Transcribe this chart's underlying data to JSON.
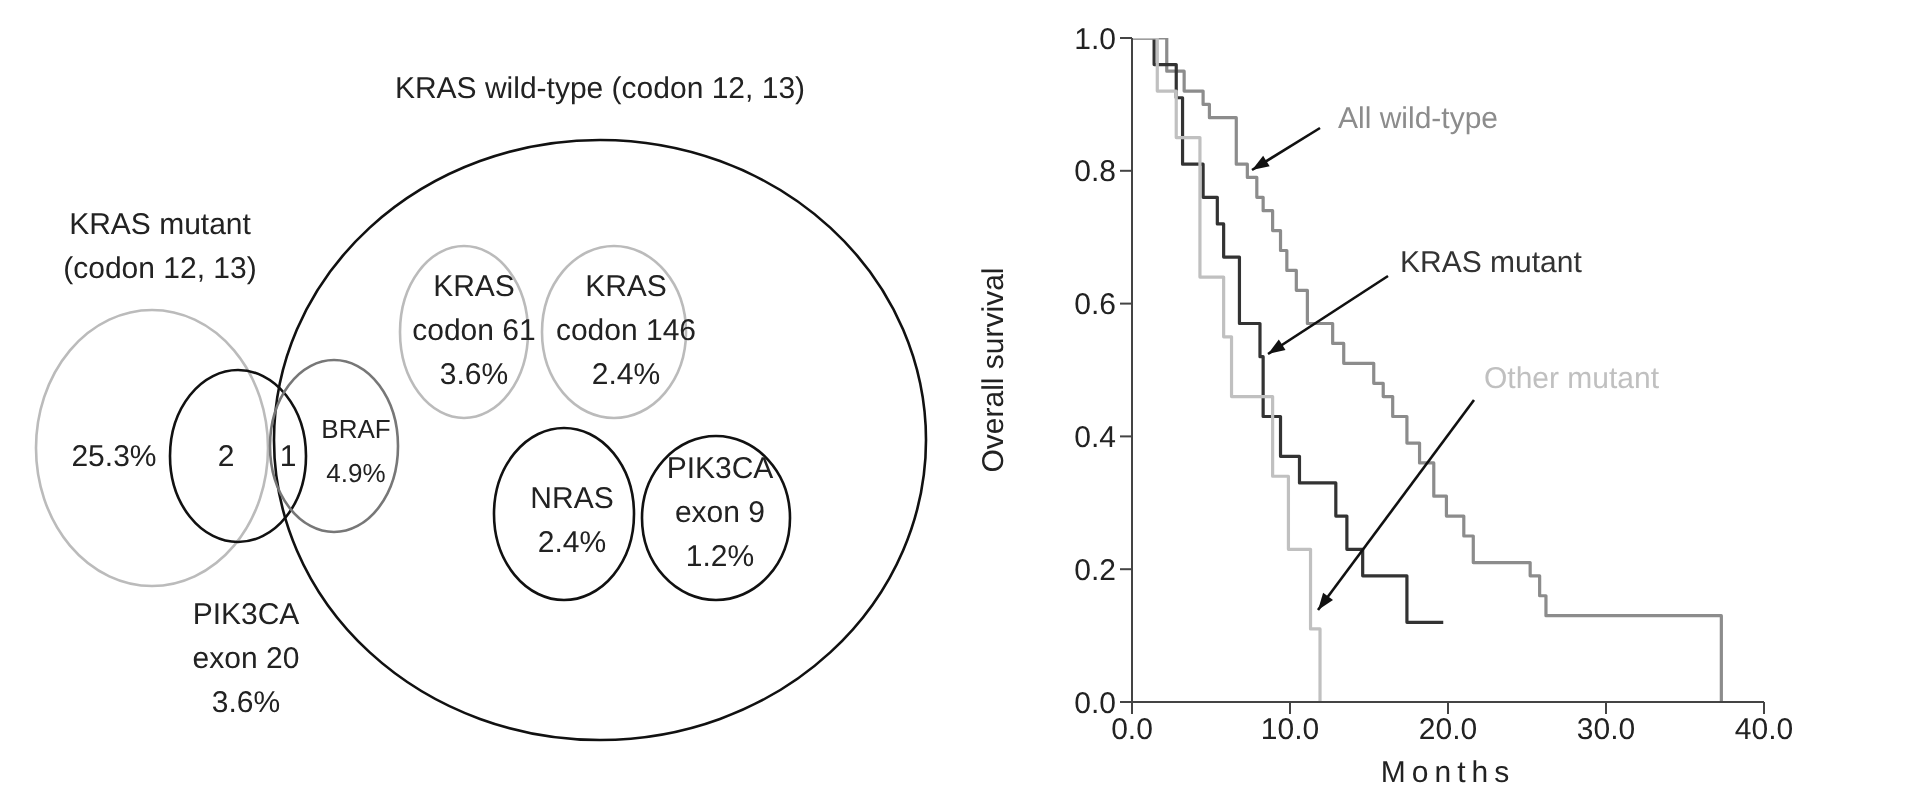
{
  "chart_data": [
    {
      "type": "other",
      "annotations": [
        "KRAS wild-type (codon 12, 13)",
        "KRAS mutant\n(codon 12, 13)",
        "KRAS\ncodon 61\n3.6%",
        "KRAS\ncodon 146\n2.4%",
        "BRAF\n4.9%",
        "NRAS\n2.4%",
        "PIK3CA\nexon 9\n1.2%",
        "PIK3CA\nexon 20\n3.6%",
        "25.3%",
        "2",
        "1"
      ]
    },
    {
      "type": "step",
      "xlabel": "Months",
      "ylabel": "Overall survival",
      "xlim": [
        0,
        40
      ],
      "xticks": [
        {
          "value": 0,
          "label": "0.0"
        },
        {
          "value": 10,
          "label": "10.0"
        },
        {
          "value": 20,
          "label": "20.0"
        },
        {
          "value": 30,
          "label": "30.0"
        },
        {
          "value": 40,
          "label": "40.0"
        }
      ],
      "ylim": [
        0,
        1
      ],
      "yticks": [
        {
          "value": 0,
          "label": "0.0"
        },
        {
          "value": 0.2,
          "label": "0.2"
        },
        {
          "value": 0.4,
          "label": "0.4"
        },
        {
          "value": 0.6,
          "label": "0.6"
        },
        {
          "value": 0.8,
          "label": "0.8"
        },
        {
          "value": 1,
          "label": "1.0"
        }
      ],
      "grid": false,
      "legend": false,
      "marker": "none",
      "line_style": "solid",
      "series": [
        {
          "name": "All wild-type",
          "color": "#8c8c8c",
          "x": [
            0,
            2.2,
            3.3,
            4.5,
            4.9,
            6.6,
            7.3,
            7.9,
            8.3,
            8.9,
            9.4,
            9.8,
            10.4,
            11.1,
            12.7,
            13.4,
            15.3,
            15.9,
            16.5,
            17.4,
            18.2,
            19.1,
            19.9,
            21.0,
            21.6,
            25.2,
            25.8,
            26.2,
            37.3
          ],
          "values": [
            1.0,
            0.95,
            0.92,
            0.9,
            0.88,
            0.81,
            0.79,
            0.76,
            0.74,
            0.71,
            0.68,
            0.65,
            0.62,
            0.57,
            0.54,
            0.51,
            0.48,
            0.46,
            0.43,
            0.39,
            0.36,
            0.31,
            0.28,
            0.25,
            0.21,
            0.19,
            0.16,
            0.13,
            0.0
          ]
        },
        {
          "name": "KRAS mutant",
          "color": "#333333",
          "x": [
            0,
            1.4,
            2.8,
            3.2,
            4.5,
            5.4,
            5.8,
            6.8,
            8.1,
            8.3,
            9.4,
            10.6,
            12.9,
            13.6,
            14.6,
            17.4,
            19.7
          ],
          "values": [
            1.0,
            0.96,
            0.91,
            0.81,
            0.76,
            0.72,
            0.67,
            0.57,
            0.52,
            0.43,
            0.37,
            0.33,
            0.28,
            0.23,
            0.19,
            0.12,
            0.12
          ]
        },
        {
          "name": "Other mutant",
          "color": "#c0c0c0",
          "x": [
            0,
            1.6,
            2.8,
            4.3,
            5.8,
            6.3,
            8.9,
            9.9,
            11.3,
            11.9
          ],
          "values": [
            1.0,
            0.92,
            0.85,
            0.64,
            0.55,
            0.46,
            0.34,
            0.23,
            0.11,
            0.0
          ]
        }
      ]
    }
  ]
}
